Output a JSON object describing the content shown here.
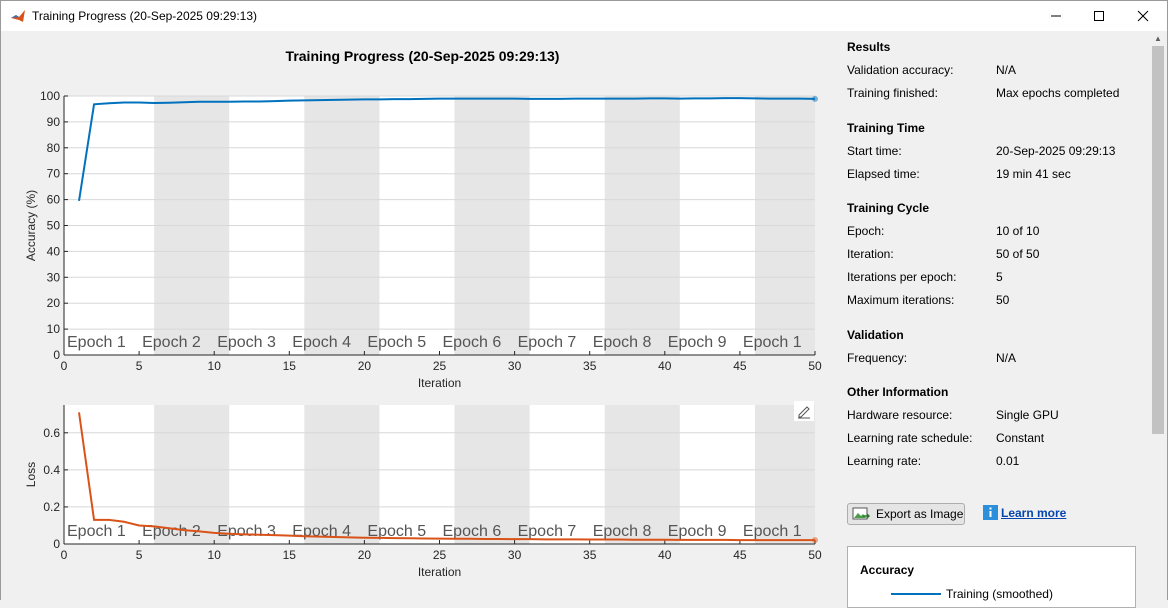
{
  "window": {
    "title": "Training Progress (20-Sep-2025 09:29:13)"
  },
  "plot": {
    "title": "Training Progress (20-Sep-2025 09:29:13)"
  },
  "chart_data": [
    {
      "type": "line",
      "name": "accuracy",
      "xlabel": "Iteration",
      "ylabel": "Accuracy (%)",
      "xlim": [
        0,
        50
      ],
      "ylim": [
        0,
        100
      ],
      "xticks": [
        0,
        5,
        10,
        15,
        20,
        25,
        30,
        35,
        40,
        45,
        50
      ],
      "yticks": [
        0,
        10,
        20,
        30,
        40,
        50,
        60,
        70,
        80,
        90,
        100
      ],
      "grid": true,
      "epoch_labels": [
        "Epoch 1",
        "Epoch 2",
        "Epoch 3",
        "Epoch 4",
        "Epoch 5",
        "Epoch 6",
        "Epoch 7",
        "Epoch 8",
        "Epoch 9",
        "Epoch 1"
      ],
      "epoch_bands": [
        [
          6,
          11
        ],
        [
          16,
          21
        ],
        [
          26,
          31
        ],
        [
          36,
          41
        ],
        [
          46,
          50
        ]
      ],
      "color": "#0072bd",
      "x": [
        1,
        2,
        3,
        4,
        5,
        6,
        7,
        8,
        9,
        10,
        11,
        12,
        13,
        14,
        15,
        16,
        17,
        18,
        19,
        20,
        21,
        22,
        23,
        24,
        25,
        26,
        27,
        28,
        29,
        30,
        31,
        32,
        33,
        34,
        35,
        36,
        37,
        38,
        39,
        40,
        41,
        42,
        43,
        44,
        45,
        46,
        47,
        48,
        49,
        50
      ],
      "y": [
        59.5,
        96.8,
        97.2,
        97.5,
        97.5,
        97.3,
        97.4,
        97.6,
        97.8,
        97.8,
        97.8,
        97.9,
        97.9,
        98.0,
        98.2,
        98.3,
        98.4,
        98.5,
        98.6,
        98.7,
        98.7,
        98.8,
        98.8,
        98.9,
        99.0,
        99.0,
        99.0,
        99.0,
        99.0,
        99.0,
        98.9,
        98.9,
        98.9,
        99.0,
        99.0,
        99.0,
        99.0,
        99.0,
        99.1,
        99.1,
        99.0,
        99.1,
        99.1,
        99.2,
        99.2,
        99.1,
        99.0,
        99.0,
        99.0,
        98.9
      ]
    },
    {
      "type": "line",
      "name": "loss",
      "xlabel": "Iteration",
      "ylabel": "Loss",
      "xlim": [
        0,
        50
      ],
      "ylim": [
        0,
        0.75
      ],
      "xticks": [
        0,
        5,
        10,
        15,
        20,
        25,
        30,
        35,
        40,
        45,
        50
      ],
      "yticks": [
        0,
        0.2,
        0.4,
        0.6
      ],
      "ytick_labels": [
        "0",
        "0.2",
        "0.4",
        "0.6"
      ],
      "grid": true,
      "epoch_labels": [
        "Epoch 1",
        "Epoch 2",
        "Epoch 3",
        "Epoch 4",
        "Epoch 5",
        "Epoch 6",
        "Epoch 7",
        "Epoch 8",
        "Epoch 9",
        "Epoch 1"
      ],
      "epoch_bands": [
        [
          6,
          11
        ],
        [
          16,
          21
        ],
        [
          26,
          31
        ],
        [
          36,
          41
        ],
        [
          46,
          50
        ]
      ],
      "color": "#d95319",
      "x": [
        1,
        2,
        3,
        4,
        5,
        6,
        7,
        8,
        9,
        10,
        11,
        12,
        13,
        14,
        15,
        16,
        17,
        18,
        19,
        20,
        21,
        22,
        23,
        24,
        25,
        26,
        27,
        28,
        29,
        30,
        31,
        32,
        33,
        34,
        35,
        36,
        37,
        38,
        39,
        40,
        41,
        42,
        43,
        44,
        45,
        46,
        47,
        48,
        49,
        50
      ],
      "y": [
        0.71,
        0.13,
        0.13,
        0.12,
        0.1,
        0.095,
        0.085,
        0.075,
        0.068,
        0.06,
        0.055,
        0.052,
        0.05,
        0.048,
        0.045,
        0.042,
        0.04,
        0.038,
        0.036,
        0.034,
        0.033,
        0.032,
        0.031,
        0.03,
        0.029,
        0.028,
        0.028,
        0.027,
        0.027,
        0.026,
        0.026,
        0.025,
        0.025,
        0.025,
        0.024,
        0.024,
        0.024,
        0.023,
        0.023,
        0.023,
        0.022,
        0.022,
        0.022,
        0.022,
        0.021,
        0.021,
        0.021,
        0.021,
        0.021,
        0.021
      ]
    }
  ],
  "results": {
    "title": "Results",
    "validation_accuracy_label": "Validation accuracy:",
    "validation_accuracy_value": "N/A",
    "training_finished_label": "Training finished:",
    "training_finished_value": "Max epochs completed"
  },
  "training_time": {
    "title": "Training Time",
    "start_label": "Start time:",
    "start_value": "20-Sep-2025 09:29:13",
    "elapsed_label": "Elapsed time:",
    "elapsed_value": "19 min 41 sec"
  },
  "training_cycle": {
    "title": "Training Cycle",
    "epoch_label": "Epoch:",
    "epoch_value": "10 of 10",
    "iteration_label": "Iteration:",
    "iteration_value": "50 of 50",
    "ipe_label": "Iterations per epoch:",
    "ipe_value": "5",
    "max_iter_label": "Maximum iterations:",
    "max_iter_value": "50"
  },
  "validation": {
    "title": "Validation",
    "frequency_label": "Frequency:",
    "frequency_value": "N/A"
  },
  "other": {
    "title": "Other Information",
    "hw_label": "Hardware resource:",
    "hw_value": "Single GPU",
    "lrs_label": "Learning rate schedule:",
    "lrs_value": "Constant",
    "lr_label": "Learning rate:",
    "lr_value": "0.01"
  },
  "actions": {
    "export_label": "Export as Image",
    "learn_more_label": "Learn more"
  },
  "legend": {
    "title": "Accuracy",
    "training_smoothed": "Training (smoothed)"
  }
}
